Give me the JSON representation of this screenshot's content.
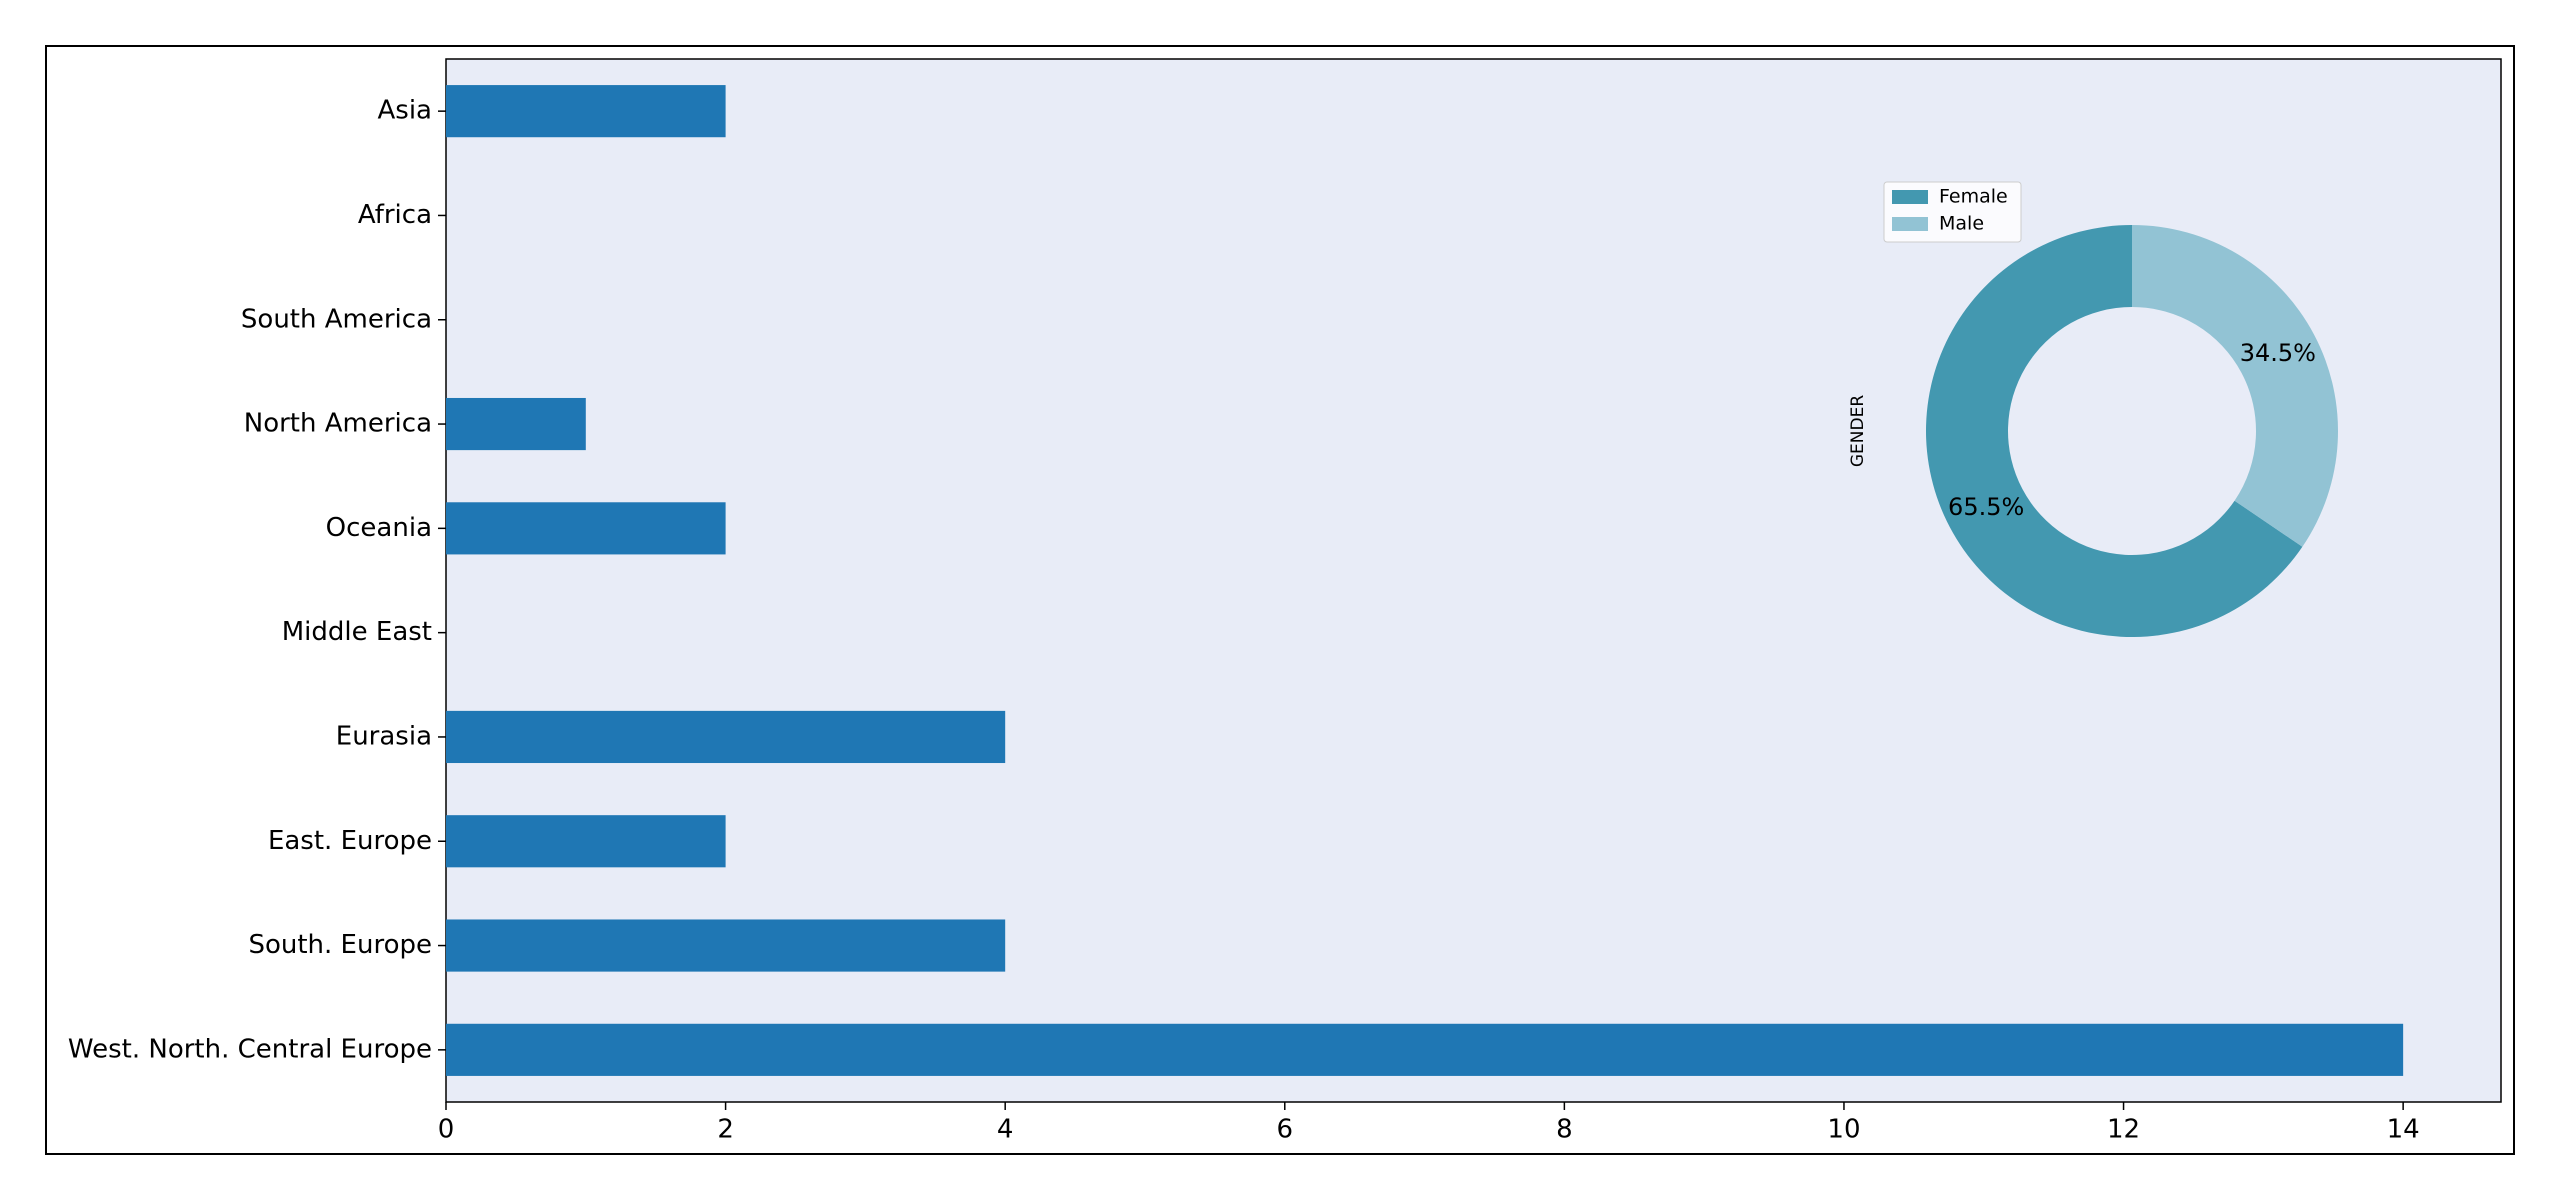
{
  "chart_data": [
    {
      "type": "bar",
      "orientation": "horizontal",
      "categories": [
        "West. North. Central Europe",
        "South. Europe",
        "East. Europe",
        "Eurasia",
        "Middle East",
        "Oceania",
        "North America",
        "South America",
        "Africa",
        "Asia"
      ],
      "values": [
        14,
        4,
        2,
        4,
        0,
        2,
        1,
        0,
        0,
        2
      ],
      "color": "#1f77b4",
      "xlim": [
        0,
        14.7
      ],
      "xticks": [
        0,
        2,
        4,
        6,
        8,
        10,
        12,
        14
      ]
    },
    {
      "type": "donut",
      "ylabel": "GENDER",
      "categories": [
        "Female",
        "Male"
      ],
      "values": [
        65.5,
        34.5
      ],
      "value_labels": [
        "65.5%",
        "34.5%"
      ],
      "colors": [
        "#4398b0",
        "#92c3d4"
      ],
      "legend": "upper left"
    }
  ]
}
